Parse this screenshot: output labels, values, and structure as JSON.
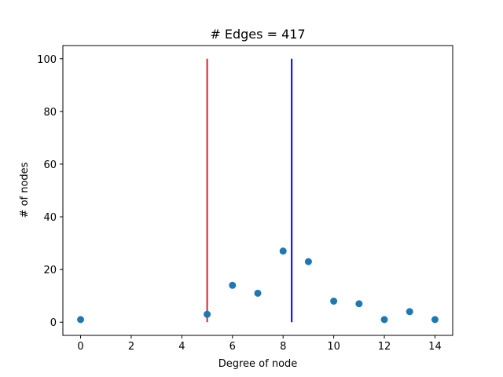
{
  "chart_data": {
    "type": "scatter",
    "title": "# Edges = 417",
    "xlabel": "Degree of node",
    "ylabel": "# of nodes",
    "xlim": [
      -0.7,
      14.7
    ],
    "ylim": [
      -5,
      105
    ],
    "xticks": [
      0,
      2,
      4,
      6,
      8,
      10,
      12,
      14
    ],
    "yticks": [
      0,
      20,
      40,
      60,
      80,
      100
    ],
    "grid": false,
    "points_color": "#1f77b4",
    "points": [
      {
        "x": 0,
        "y": 1
      },
      {
        "x": 5,
        "y": 3
      },
      {
        "x": 6,
        "y": 14
      },
      {
        "x": 7,
        "y": 11
      },
      {
        "x": 8,
        "y": 27
      },
      {
        "x": 9,
        "y": 23
      },
      {
        "x": 10,
        "y": 8
      },
      {
        "x": 11,
        "y": 7
      },
      {
        "x": 12,
        "y": 1
      },
      {
        "x": 13,
        "y": 4
      },
      {
        "x": 14,
        "y": 1
      }
    ],
    "vlines": [
      {
        "x": 5.0,
        "y_from": 0,
        "y_to": 100,
        "color": "#d62728"
      },
      {
        "x": 8.34,
        "y_from": 0,
        "y_to": 100,
        "color": "#0000ff"
      }
    ]
  }
}
